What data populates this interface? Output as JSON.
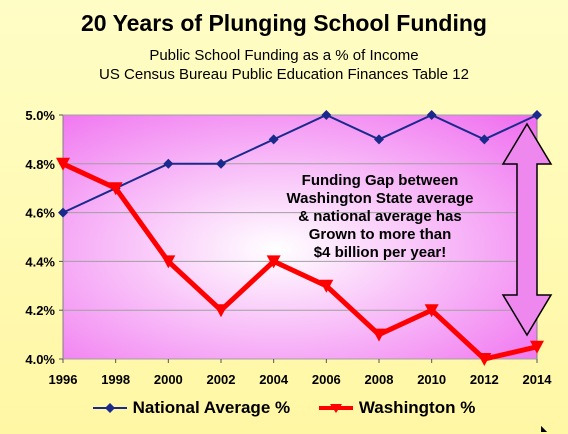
{
  "chart_data": {
    "type": "line",
    "title": "20 Years of Plunging School Funding",
    "subtitle_lines": [
      "Public School Funding as a % of Income",
      "US Census Bureau Public Education Finances Table 12"
    ],
    "categories": [
      "1996",
      "1998",
      "2000",
      "2002",
      "2004",
      "2006",
      "2008",
      "2010",
      "2012",
      "2014"
    ],
    "ylim": [
      4.0,
      5.0
    ],
    "yticks": [
      4.0,
      4.2,
      4.4,
      4.6,
      4.8,
      5.0
    ],
    "ytick_labels": [
      "4.0%",
      "4.2%",
      "4.4%",
      "4.6%",
      "4.8%",
      "5.0%"
    ],
    "grid": true,
    "legend_position": "bottom",
    "series": [
      {
        "name": "National Average %",
        "values": [
          4.6,
          4.7,
          4.8,
          4.8,
          4.9,
          5.0,
          4.9,
          5.0,
          4.9,
          5.0
        ],
        "color": "#1a2a8c",
        "marker": "diamond"
      },
      {
        "name": "Washington %",
        "values": [
          4.8,
          4.7,
          4.4,
          4.2,
          4.4,
          4.3,
          4.1,
          4.2,
          4.0,
          4.05
        ],
        "color": "#ff0000",
        "marker": "triangle"
      }
    ],
    "annotations": [
      "Funding Gap between",
      "Washington State average",
      "& national average has",
      "Grown to more than",
      "$4 billion per year!"
    ]
  },
  "colors": {
    "plot_bg_center": "#ffffff",
    "plot_bg_edge": "#f070f0",
    "arrow_fill": "#ee88ee",
    "arrow_stroke": "#000000"
  }
}
